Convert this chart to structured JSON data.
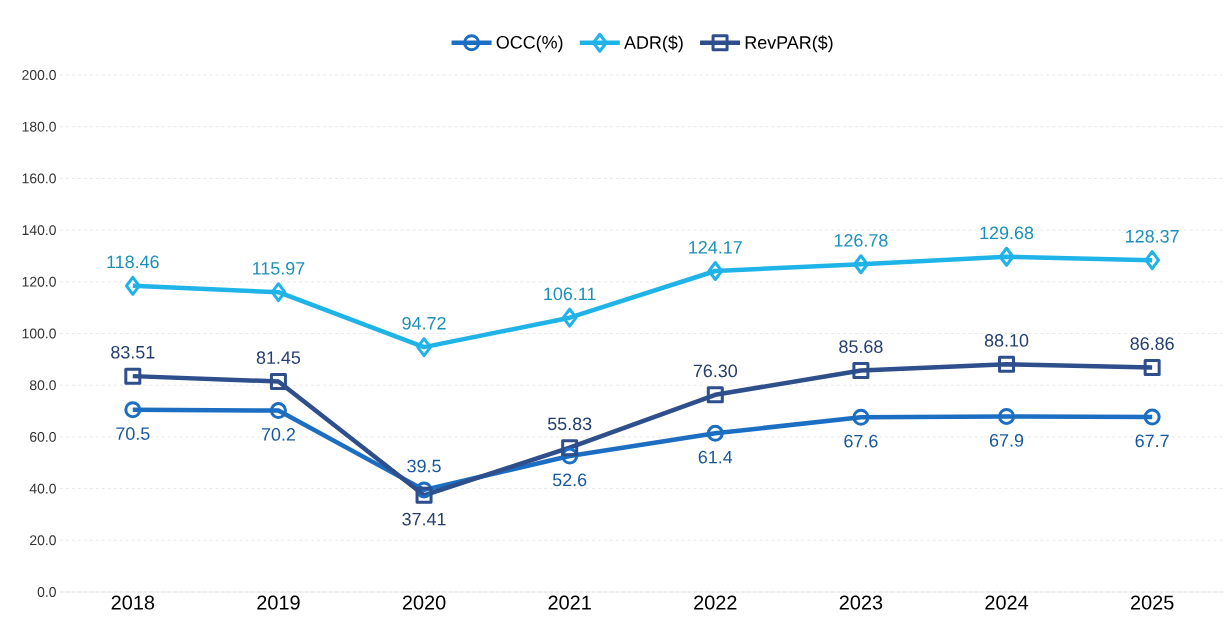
{
  "chart_data": {
    "type": "line",
    "categories": [
      "2018",
      "2019",
      "2020",
      "2021",
      "2022",
      "2023",
      "2024",
      "2025"
    ],
    "series": [
      {
        "name": "OCC(%)",
        "color": "#1b6ec2",
        "marker": "circle",
        "values": [
          70.5,
          70.2,
          39.5,
          52.6,
          61.4,
          67.6,
          67.9,
          67.7
        ]
      },
      {
        "name": "ADR($)",
        "color": "#1fb3e8",
        "marker": "diamond",
        "values": [
          118.46,
          115.97,
          94.72,
          106.11,
          124.17,
          126.78,
          129.68,
          128.37
        ]
      },
      {
        "name": "RevPAR($)",
        "color": "#2e4e8c",
        "marker": "square",
        "values": [
          83.51,
          81.45,
          37.41,
          55.83,
          76.3,
          85.68,
          88.1,
          86.86
        ],
        "value_labels": [
          "83.51",
          "81.45",
          "37.41",
          "55.83",
          "76.30",
          "85.68",
          "88.10",
          "86.86"
        ]
      }
    ],
    "ylim": [
      0,
      200
    ],
    "yticks": [
      {
        "value": 0,
        "label": "0.0"
      },
      {
        "value": 20,
        "label": "20.0"
      },
      {
        "value": 40,
        "label": "40.0"
      },
      {
        "value": 60,
        "label": "60.0"
      },
      {
        "value": 80,
        "label": "80.0"
      },
      {
        "value": 100,
        "label": "100.0"
      },
      {
        "value": 120,
        "label": "120.0"
      },
      {
        "value": 140,
        "label": "140.0"
      },
      {
        "value": 160,
        "label": "160.0"
      },
      {
        "value": 180,
        "label": "180.0"
      },
      {
        "value": 200,
        "label": "200.0"
      }
    ],
    "grid": "y",
    "legend": "top",
    "data_labels": true
  }
}
